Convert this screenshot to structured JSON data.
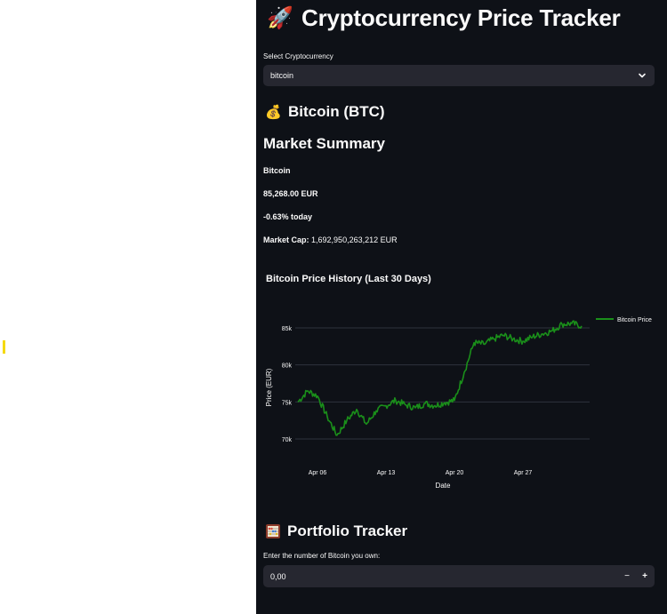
{
  "header": {
    "title": "Cryptocurrency Price Tracker",
    "icon": "rocket-icon"
  },
  "select": {
    "label": "Select Cryptocurrency",
    "value": "bitcoin"
  },
  "coin": {
    "title": "Bitcoin (BTC)",
    "icon": "money-bag-icon"
  },
  "summary": {
    "heading": "Market Summary",
    "name": "Bitcoin",
    "price": "85,268.00 EUR",
    "change": "-0.63% today",
    "market_cap_label": "Market Cap:",
    "market_cap_value": "1,692,950,263,212 EUR"
  },
  "chart_data": {
    "type": "line",
    "title": "Bitcoin Price History (Last 30 Days)",
    "xlabel": "Date",
    "ylabel": "Price (EUR)",
    "x_ticks": [
      "Apr 06",
      "Apr 13",
      "Apr 20",
      "Apr 27"
    ],
    "y_ticks": [
      "70k",
      "75k",
      "80k",
      "85k"
    ],
    "ylim": [
      67500,
      87500
    ],
    "grid": true,
    "legend_placement": "top-right",
    "series": [
      {
        "name": "Bitcoin Price",
        "color": "#1a8f1a",
        "x": [
          "2025-04-04",
          "2025-04-05",
          "2025-04-06",
          "2025-04-07",
          "2025-04-08",
          "2025-04-09",
          "2025-04-10",
          "2025-04-11",
          "2025-04-12",
          "2025-04-13",
          "2025-04-14",
          "2025-04-15",
          "2025-04-16",
          "2025-04-17",
          "2025-04-18",
          "2025-04-19",
          "2025-04-20",
          "2025-04-21",
          "2025-04-22",
          "2025-04-23",
          "2025-04-24",
          "2025-04-25",
          "2025-04-26",
          "2025-04-27",
          "2025-04-28",
          "2025-04-29",
          "2025-04-30",
          "2025-05-01",
          "2025-05-02",
          "2025-05-03"
        ],
        "values": [
          75000,
          76500,
          75800,
          73000,
          70500,
          72500,
          74000,
          72000,
          73800,
          74500,
          75200,
          74600,
          74200,
          74800,
          74500,
          74900,
          75200,
          79000,
          83000,
          82800,
          83500,
          84000,
          83500,
          83200,
          83800,
          84200,
          84600,
          85500,
          85600,
          85268
        ]
      }
    ]
  },
  "portfolio": {
    "title": "Portfolio Tracker",
    "icon": "abacus-icon",
    "label": "Enter the number of Bitcoin you own:",
    "value": "0,00",
    "minus": "−",
    "plus": "+"
  },
  "colors": {
    "background": "#0e1117",
    "widget": "#262730",
    "line": "#1a8f1a",
    "accent": "#f5d90a"
  }
}
